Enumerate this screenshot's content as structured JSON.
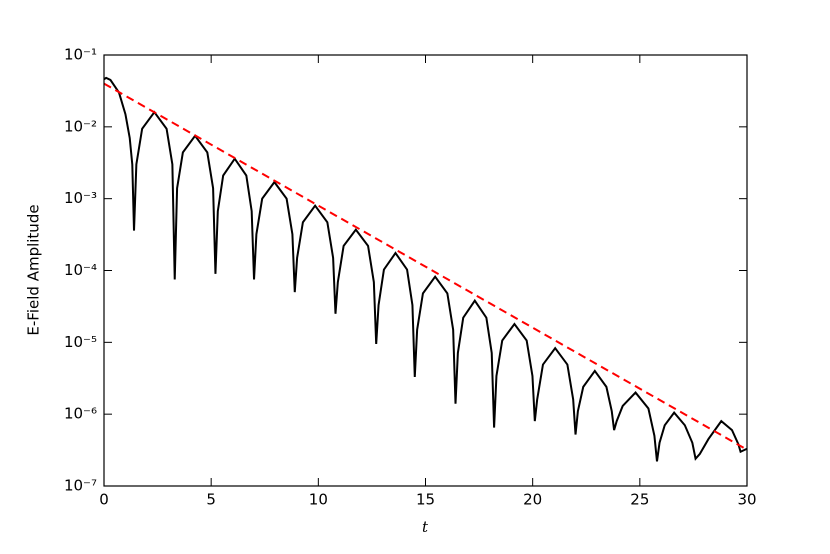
{
  "chart_data": {
    "type": "line",
    "log_y": true,
    "xlabel": "t",
    "ylabel": "E-Field Amplitude",
    "xlim": [
      0,
      30
    ],
    "xticks": [
      0,
      5,
      10,
      15,
      20,
      25,
      30
    ],
    "ylim": [
      1e-07,
      0.1
    ],
    "yticks": [
      {
        "value": 1e-07,
        "label": "10⁻⁷"
      },
      {
        "value": 1e-06,
        "label": "10⁻⁶"
      },
      {
        "value": 1e-05,
        "label": "10⁻⁵"
      },
      {
        "value": 0.0001,
        "label": "10⁻⁴"
      },
      {
        "value": 0.001,
        "label": "10⁻³"
      },
      {
        "value": 0.01,
        "label": "10⁻²"
      },
      {
        "value": 0.1,
        "label": "10⁻¹"
      }
    ],
    "series": [
      {
        "color": "#000000",
        "dash": false,
        "x": [
          0,
          0.1,
          0.3,
          0.7,
          1.0,
          1.2,
          1.32,
          1.4,
          1.51,
          1.78,
          2.35,
          2.92,
          3.19,
          3.3,
          3.41,
          3.68,
          4.25,
          4.82,
          5.09,
          5.2,
          5.31,
          5.56,
          6.1,
          6.64,
          6.89,
          7.0,
          7.11,
          7.38,
          7.95,
          8.52,
          8.79,
          8.9,
          9.01,
          9.28,
          9.85,
          10.42,
          10.69,
          10.8,
          10.91,
          11.18,
          11.75,
          12.32,
          12.59,
          12.7,
          12.81,
          13.06,
          13.6,
          14.14,
          14.39,
          14.5,
          14.61,
          14.88,
          15.45,
          16.02,
          16.29,
          16.4,
          16.51,
          16.76,
          17.3,
          17.84,
          18.09,
          18.2,
          18.31,
          18.58,
          19.15,
          19.72,
          19.99,
          20.1,
          20.21,
          20.48,
          21.05,
          21.62,
          21.89,
          22.0,
          22.11,
          22.36,
          22.9,
          23.44,
          23.69,
          23.8,
          23.92,
          24.2,
          24.8,
          25.4,
          25.68,
          25.8,
          25.92,
          26.16,
          26.6,
          27.1,
          27.45,
          27.6,
          27.8,
          28.2,
          28.8,
          29.3,
          29.6,
          29.7,
          30
        ],
        "values": [
          0.046,
          0.048,
          0.045,
          0.03,
          0.015,
          0.007,
          0.003,
          0.00036,
          0.003,
          0.0094,
          0.016,
          0.0094,
          0.003,
          7.5e-05,
          0.0014,
          0.0044,
          0.0075,
          0.0044,
          0.0014,
          9e-05,
          0.00067,
          0.0021,
          0.0036,
          0.0021,
          0.00067,
          7.5e-05,
          0.00032,
          0.001,
          0.0017,
          0.001,
          0.00032,
          5e-05,
          0.00015,
          0.00047,
          0.0008,
          0.00047,
          0.00015,
          2.5e-05,
          6.9e-05,
          0.00022,
          0.00037,
          0.00022,
          6.9e-05,
          9.5e-06,
          3.3e-05,
          0.000103,
          0.000175,
          0.000103,
          3.3e-05,
          3.3e-06,
          1.5e-05,
          4.8e-05,
          8.2e-05,
          4.8e-05,
          1.5e-05,
          1.4e-06,
          7.1e-06,
          2.2e-05,
          3.8e-05,
          2.2e-05,
          7.1e-06,
          6.5e-07,
          3.4e-06,
          1.06e-05,
          1.8e-05,
          1.06e-05,
          3.4e-06,
          8e-07,
          1.6e-06,
          4.9e-06,
          8.3e-06,
          4.9e-06,
          1.6e-06,
          5.2e-07,
          1.1e-06,
          2.4e-06,
          4e-06,
          2.4e-06,
          1.1e-06,
          6e-07,
          8e-07,
          1.3e-06,
          2e-06,
          1.2e-06,
          5e-07,
          2.2e-07,
          4e-07,
          7e-07,
          1.05e-06,
          7e-07,
          4e-07,
          2.4e-07,
          2.8e-07,
          4.5e-07,
          8e-07,
          6e-07,
          3.8e-07,
          3e-07,
          3.3e-07
        ]
      },
      {
        "color": "#ff0000",
        "dash": true,
        "x": [
          0,
          30
        ],
        "values": [
          0.04,
          3.2e-07
        ]
      }
    ]
  }
}
